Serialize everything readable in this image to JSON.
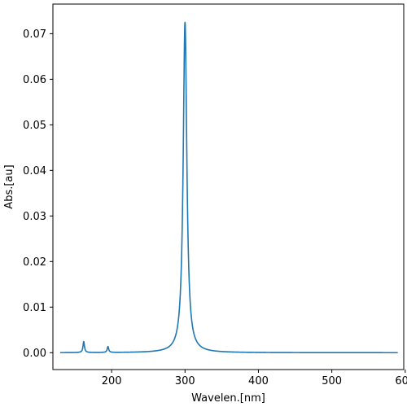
{
  "chart_data": {
    "type": "line",
    "title": "",
    "xlabel": "Wavelen.[nm]",
    "ylabel": "Abs.[au]",
    "xlim": [
      120,
      598
    ],
    "ylim": [
      -0.0037,
      0.0765
    ],
    "xticks": [
      200,
      300,
      400,
      500,
      600
    ],
    "xtick_labels": [
      "200",
      "300",
      "400",
      "500",
      "600"
    ],
    "yticks": [
      0.0,
      0.01,
      0.02,
      0.03,
      0.04,
      0.05,
      0.06,
      0.07
    ],
    "ytick_labels": [
      "0.00",
      "0.01",
      "0.02",
      "0.03",
      "0.04",
      "0.05",
      "0.06",
      "0.07"
    ],
    "grid": false,
    "legend": "none",
    "line_color": "#1f77b4",
    "x_range": [
      130,
      590
    ],
    "baseline": 0.0,
    "peaks": [
      {
        "center": 300,
        "height": 0.0725,
        "hwhm": 3.0
      },
      {
        "center": 162,
        "height": 0.0024,
        "hwhm": 1.2
      },
      {
        "center": 195,
        "height": 0.0013,
        "hwhm": 1.2
      }
    ]
  }
}
